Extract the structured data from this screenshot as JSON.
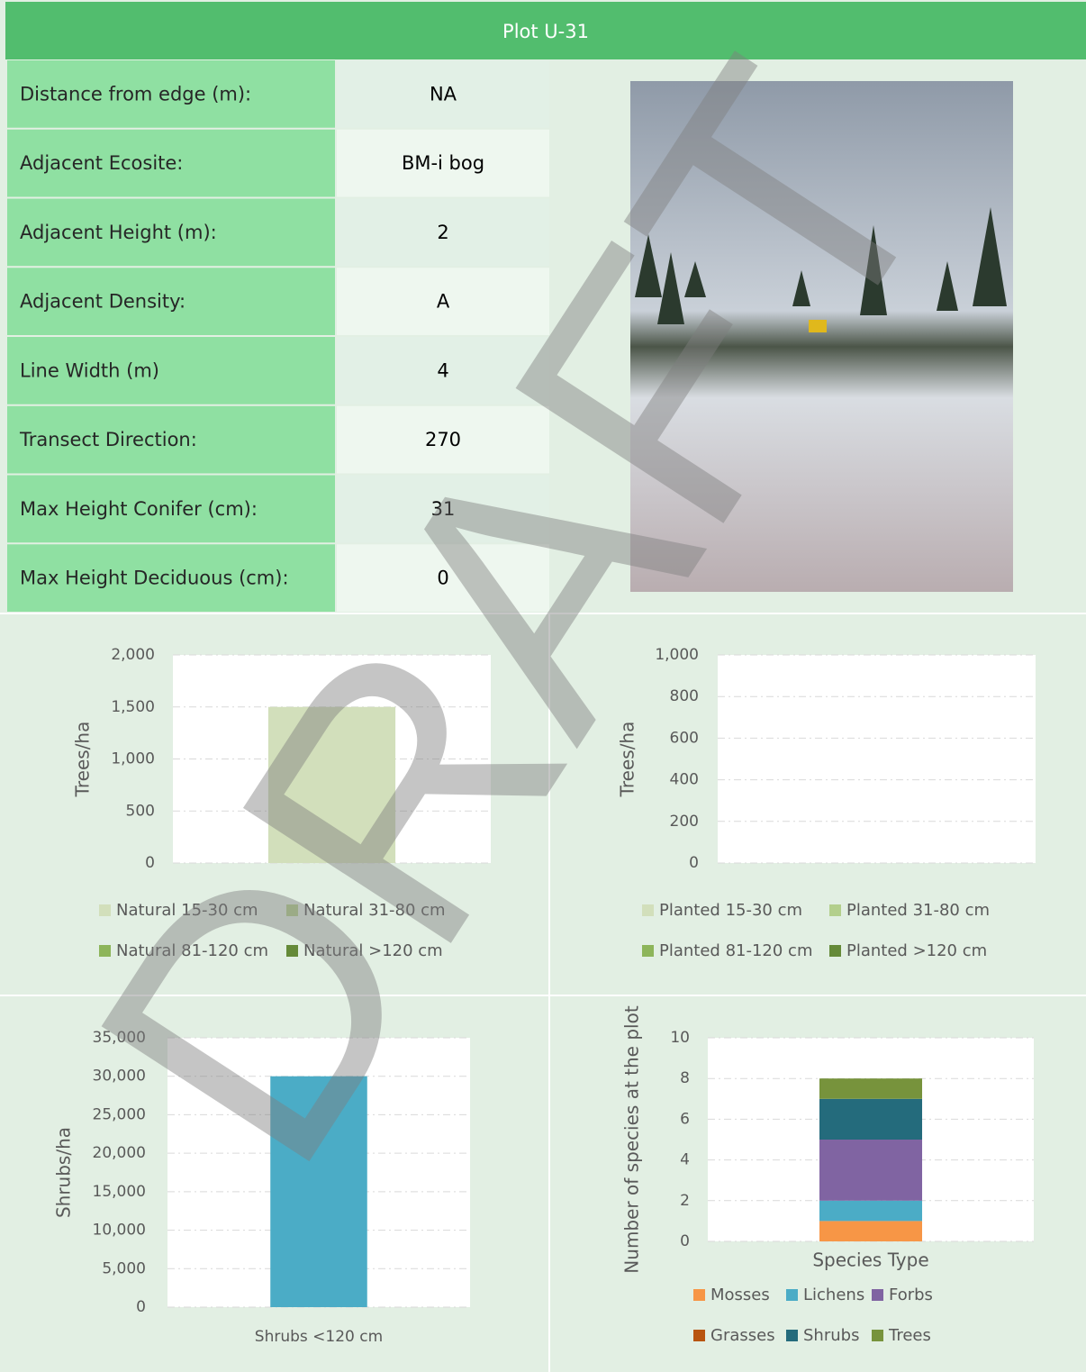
{
  "header": {
    "title": "Plot U-31"
  },
  "table": {
    "rows": [
      [
        "Distance from edge (m):",
        "NA"
      ],
      [
        "Adjacent Ecosite:",
        "BM-i bog"
      ],
      [
        "Adjacent Height (m):",
        2
      ],
      [
        "Adjacent Density:",
        "A"
      ],
      [
        "Line Width (m)",
        4
      ],
      [
        "Transect Direction:",
        270
      ],
      [
        "Max Height Conifer (cm):",
        31
      ],
      [
        "Max Height Deciduous (cm):",
        0
      ]
    ]
  },
  "watermark": "DRAFT",
  "chart_data": [
    {
      "type": "bar",
      "stacked": true,
      "categories": [
        null
      ],
      "series": [
        {
          "name": "Natural 15-30 cm",
          "color": "#d2dfbb",
          "values": [
            1500
          ]
        },
        {
          "name": "Natural 31-80 cm",
          "color": "#b3cf8c",
          "values": [
            0
          ]
        },
        {
          "name": "Natural 81-120 cm",
          "color": "#8db55a",
          "values": [
            0
          ]
        },
        {
          "name": "Natural >120 cm",
          "color": "#658a39",
          "values": [
            0
          ]
        }
      ],
      "y_label": "Trees/ha",
      "ylim": [
        0,
        2000
      ],
      "yticks": [
        0,
        500,
        {
          "value": 1000,
          "label": "1,000"
        },
        {
          "value": 1500,
          "label": "1,500"
        },
        {
          "value": 2000,
          "label": "2,000"
        }
      ],
      "grid": true,
      "legend": "bottom"
    },
    {
      "type": "bar",
      "stacked": true,
      "categories": [
        null
      ],
      "series": [
        {
          "name": "Planted 15-30 cm",
          "color": "#d2dfbb",
          "values": [
            0
          ]
        },
        {
          "name": "Planted 31-80 cm",
          "color": "#b3cf8c",
          "values": [
            0
          ]
        },
        {
          "name": "Planted 81-120 cm",
          "color": "#8db55a",
          "values": [
            0
          ]
        },
        {
          "name": "Planted >120 cm",
          "color": "#658a39",
          "values": [
            0
          ]
        }
      ],
      "y_label": "Trees/ha",
      "ylim": [
        0,
        1000
      ],
      "yticks": [
        0,
        200,
        400,
        600,
        800,
        {
          "value": 1000,
          "label": "1,000"
        }
      ],
      "grid": true,
      "legend": "bottom"
    },
    {
      "type": "bar",
      "categories": [
        "Shrubs <120 cm"
      ],
      "values": [
        30000
      ],
      "color": "#4bacc6",
      "y_label": "Shrubs/ha",
      "ylim": [
        0,
        35000
      ],
      "yticks": [
        0,
        {
          "value": 5000,
          "label": "5,000"
        },
        {
          "value": 10000,
          "label": "10,000"
        },
        {
          "value": 15000,
          "label": "15,000"
        },
        {
          "value": 20000,
          "label": "20,000"
        },
        {
          "value": 25000,
          "label": "25,000"
        },
        {
          "value": 30000,
          "label": "30,000"
        },
        {
          "value": 35000,
          "label": "35,000"
        }
      ],
      "grid": true
    },
    {
      "type": "bar",
      "stacked": true,
      "categories": [
        "Species Type"
      ],
      "series": [
        {
          "name": "Mosses",
          "color": "#f79646",
          "values": [
            1
          ]
        },
        {
          "name": "Lichens",
          "color": "#4bacc6",
          "values": [
            1
          ]
        },
        {
          "name": "Forbs",
          "color": "#8064a2",
          "values": [
            3
          ]
        },
        {
          "name": "Grasses",
          "color": "#b8540f",
          "values": [
            0
          ]
        },
        {
          "name": "Shrubs",
          "color": "#246b7c",
          "values": [
            2
          ]
        },
        {
          "name": "Trees",
          "color": "#77933c",
          "values": [
            1
          ]
        }
      ],
      "y_label": "Number of species at the plot",
      "ylim": [
        0,
        10
      ],
      "yticks": [
        0,
        2,
        4,
        6,
        8,
        10
      ],
      "grid": true,
      "legend": "bottom"
    }
  ]
}
